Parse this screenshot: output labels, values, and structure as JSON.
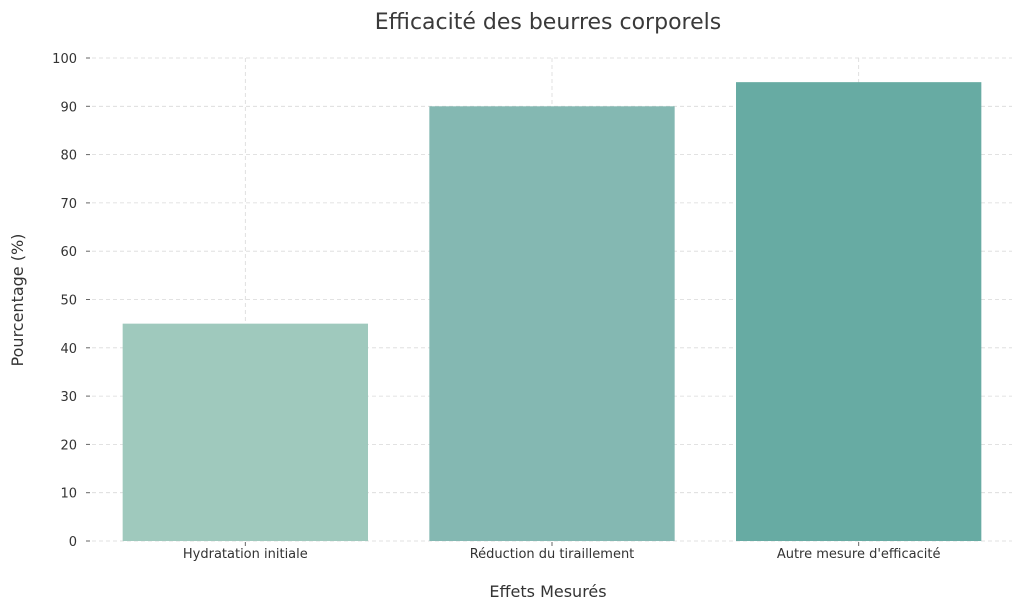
{
  "chart_data": {
    "type": "bar",
    "title": "Efficacité des beurres corporels",
    "xlabel": "Effets Mesurés",
    "ylabel": "Pourcentage (%)",
    "categories": [
      "Hydratation initiale",
      "Réduction du tiraillement",
      "Autre mesure d'efficacité"
    ],
    "values": [
      45,
      90,
      95
    ],
    "ylim": [
      0,
      100
    ],
    "yticks": [
      0,
      10,
      20,
      30,
      40,
      50,
      60,
      70,
      80,
      90,
      100
    ],
    "grid": true,
    "colors": [
      "#9fc9bd",
      "#84b8b2",
      "#67aba3"
    ]
  }
}
